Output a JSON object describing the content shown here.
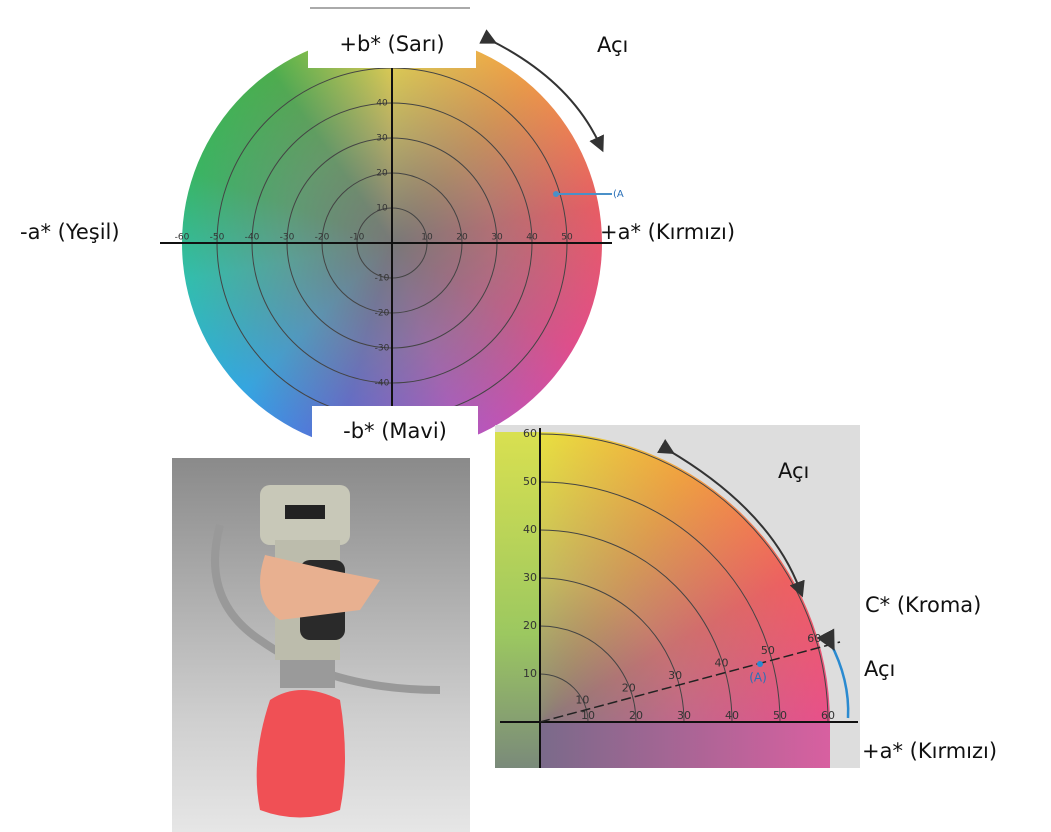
{
  "top_diagram": {
    "b_plus": "+b* (Sarı)",
    "angle": "Açı",
    "a_minus": "-a* (Yeşil)",
    "a_plus": "+a* (Kırmızı)",
    "b_minus": "-b* (Mavi)",
    "point": "(A",
    "x_ticks": [
      "-60",
      "-50",
      "-40",
      "-30",
      "-20",
      "-10",
      "10",
      "20",
      "30",
      "40",
      "50"
    ],
    "y_ticks": [
      "40",
      "30",
      "20",
      "10",
      "-10",
      "-20",
      "-30",
      "-40"
    ]
  },
  "bottom_diagram": {
    "angle": "Açı",
    "chroma": "C* (Kroma)",
    "angle_small": "Açı",
    "a_plus": "+a* (Kırmızı)",
    "point": "(A)",
    "y_ticks": [
      "60",
      "50",
      "40",
      "30",
      "20",
      "10"
    ],
    "x_ticks": [
      "10",
      "20",
      "30",
      "40",
      "50",
      "60"
    ],
    "c_ticks": [
      "10",
      "20",
      "30",
      "40",
      "50",
      "60"
    ]
  }
}
